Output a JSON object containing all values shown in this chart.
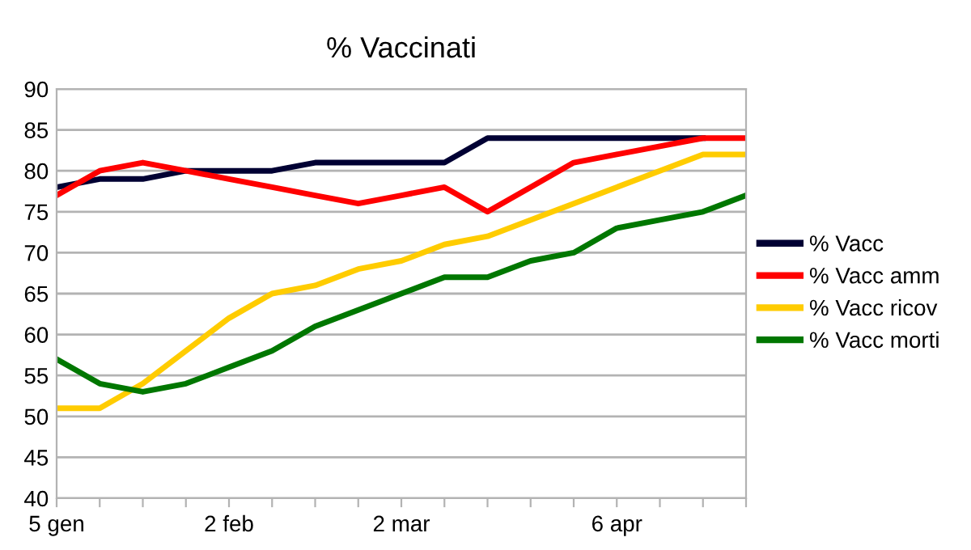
{
  "chart_data": {
    "type": "line",
    "title": "% Vaccinati",
    "categories": [
      "5 gen",
      null,
      null,
      null,
      "2 feb",
      null,
      null,
      null,
      "2 mar",
      null,
      null,
      null,
      null,
      "6 apr",
      null,
      null,
      null
    ],
    "series": [
      {
        "name": "% Vacc",
        "color": "#000033",
        "values": [
          78,
          79,
          79,
          80,
          80,
          80,
          81,
          81,
          81,
          81,
          84,
          84,
          84,
          84,
          84,
          84,
          null
        ]
      },
      {
        "name": "% Vacc amm",
        "color": "#ff0000",
        "values": [
          77,
          80,
          81,
          80,
          79,
          78,
          77,
          76,
          77,
          78,
          75,
          78,
          81,
          82,
          83,
          84,
          84
        ]
      },
      {
        "name": "% Vacc ricov",
        "color": "#ffcc00",
        "values": [
          51,
          51,
          54,
          58,
          62,
          65,
          66,
          68,
          69,
          71,
          72,
          74,
          76,
          78,
          80,
          82,
          82
        ]
      },
      {
        "name": "% Vacc morti",
        "color": "#007700",
        "values": [
          57,
          54,
          53,
          54,
          56,
          58,
          61,
          63,
          65,
          67,
          67,
          69,
          70,
          73,
          74,
          75,
          77
        ]
      }
    ],
    "ylim": [
      40,
      90
    ],
    "yticks": [
      40,
      45,
      50,
      55,
      60,
      65,
      70,
      75,
      80,
      85,
      90
    ],
    "grid": "y",
    "legend": "right",
    "marker": "none",
    "line_style": "solid"
  }
}
